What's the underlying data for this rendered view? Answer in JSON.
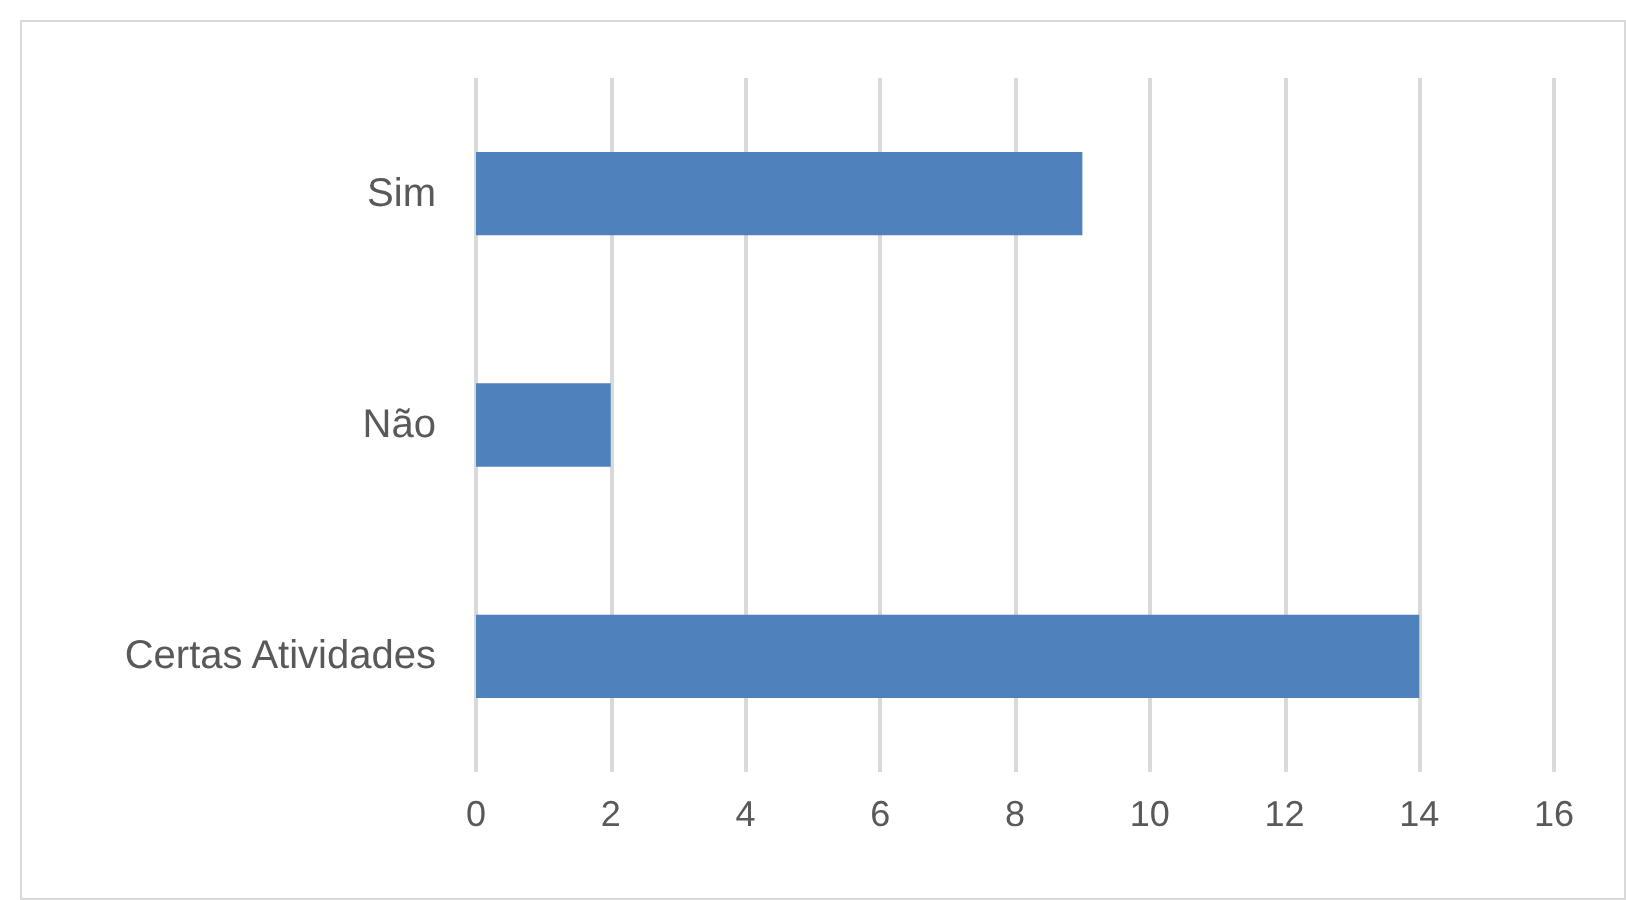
{
  "chart_data": {
    "type": "bar",
    "orientation": "horizontal",
    "categories": [
      "Sim",
      "Não",
      "Certas Atividades"
    ],
    "values": [
      9,
      2,
      14
    ],
    "color": "#4f81bd",
    "xlim": [
      0,
      16
    ],
    "xticks": [
      0,
      2,
      4,
      6,
      8,
      10,
      12,
      14,
      16
    ],
    "grid": "x"
  }
}
